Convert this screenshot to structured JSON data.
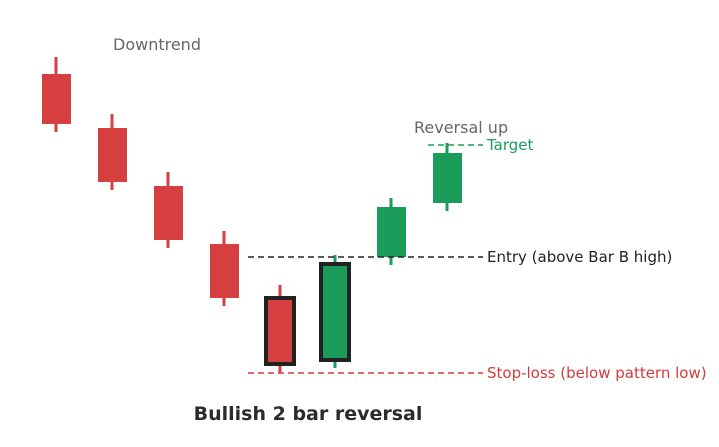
{
  "title": "Bullish 2 bar reversal",
  "annotations": {
    "downtrend": "Downtrend",
    "reversal": "Reversal up"
  },
  "levels": {
    "target": {
      "label": "Target",
      "color": "#1a9c5a"
    },
    "entry": {
      "label": "Entry (above Bar B high)",
      "color": "#222222"
    },
    "stop": {
      "label": "Stop-loss (below pattern low)",
      "color": "#d23b3b"
    }
  },
  "colors": {
    "bearish": "#d53f40",
    "bullish": "#1a9c5a",
    "highlight_outline": "#222222"
  },
  "candles": [
    {
      "name": "candle-1",
      "type": "bearish",
      "highlighted": false
    },
    {
      "name": "candle-2",
      "type": "bearish",
      "highlighted": false
    },
    {
      "name": "candle-3",
      "type": "bearish",
      "highlighted": false
    },
    {
      "name": "candle-4",
      "type": "bearish",
      "highlighted": false
    },
    {
      "name": "candle-bar-a",
      "type": "bearish",
      "highlighted": true
    },
    {
      "name": "candle-bar-b",
      "type": "bullish",
      "highlighted": true
    },
    {
      "name": "candle-7",
      "type": "bullish",
      "highlighted": false
    },
    {
      "name": "candle-8",
      "type": "bullish",
      "highlighted": false
    }
  ]
}
